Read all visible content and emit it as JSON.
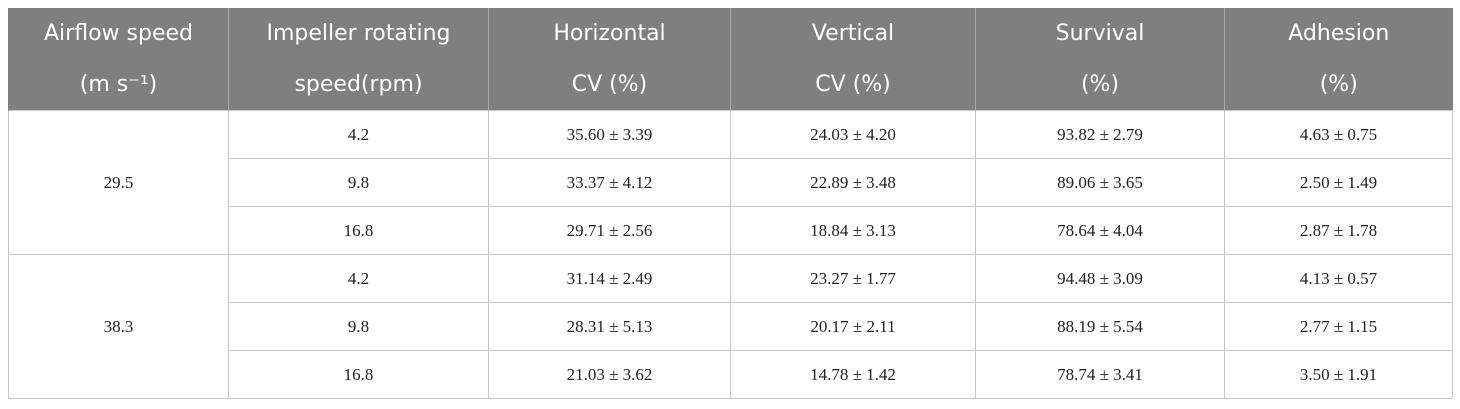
{
  "table": {
    "header": [
      [
        "Airflow speed",
        "(m s⁻¹)"
      ],
      [
        "Impeller rotating",
        "speed(rpm)"
      ],
      [
        "Horizontal",
        "CV (%)"
      ],
      [
        "Vertical",
        "CV (%)"
      ],
      [
        "Survival",
        "(%)"
      ],
      [
        "Adhesion",
        "(%)"
      ]
    ],
    "groups": [
      {
        "airflow": "29.5",
        "rows": [
          [
            "4.2",
            "35.60 ± 3.39",
            "24.03 ± 4.20",
            "93.82 ± 2.79",
            "4.63 ± 0.75"
          ],
          [
            "9.8",
            "33.37 ± 4.12",
            "22.89 ± 3.48",
            "89.06 ± 3.65",
            "2.50 ± 1.49"
          ],
          [
            "16.8",
            "29.71 ± 2.56",
            "18.84 ± 3.13",
            "78.64 ± 4.04",
            "2.87 ± 1.78"
          ]
        ]
      },
      {
        "airflow": "38.3",
        "rows": [
          [
            "4.2",
            "31.14 ± 2.49",
            "23.27 ± 1.77",
            "94.48 ± 3.09",
            "4.13 ± 0.57"
          ],
          [
            "9.8",
            "28.31 ± 5.13",
            "20.17 ± 2.11",
            "88.19 ± 5.54",
            "2.77 ± 1.15"
          ],
          [
            "16.8",
            "21.03 ± 3.62",
            "14.78 ± 1.42",
            "78.74 ± 3.41",
            "3.50 ± 1.91"
          ]
        ]
      }
    ]
  }
}
